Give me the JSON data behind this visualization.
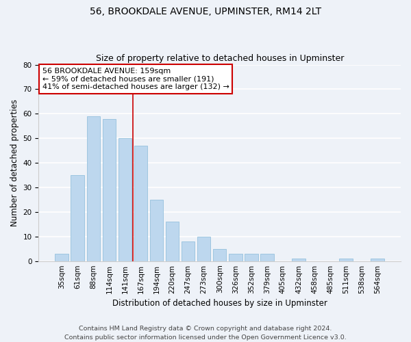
{
  "title": "56, BROOKDALE AVENUE, UPMINSTER, RM14 2LT",
  "subtitle": "Size of property relative to detached houses in Upminster",
  "xlabel": "Distribution of detached houses by size in Upminster",
  "ylabel": "Number of detached properties",
  "categories": [
    "35sqm",
    "61sqm",
    "88sqm",
    "114sqm",
    "141sqm",
    "167sqm",
    "194sqm",
    "220sqm",
    "247sqm",
    "273sqm",
    "300sqm",
    "326sqm",
    "352sqm",
    "379sqm",
    "405sqm",
    "432sqm",
    "458sqm",
    "485sqm",
    "511sqm",
    "538sqm",
    "564sqm"
  ],
  "values": [
    3,
    35,
    59,
    58,
    50,
    47,
    25,
    16,
    8,
    10,
    5,
    3,
    3,
    3,
    0,
    1,
    0,
    0,
    1,
    0,
    1
  ],
  "bar_color": "#bdd7ee",
  "bar_edge_color": "#9ec6e0",
  "vline_x_index": 5,
  "vline_color": "#cc0000",
  "ylim": [
    0,
    80
  ],
  "yticks": [
    0,
    10,
    20,
    30,
    40,
    50,
    60,
    70,
    80
  ],
  "annotation_line1": "56 BROOKDALE AVENUE: 159sqm",
  "annotation_line2": "← 59% of detached houses are smaller (191)",
  "annotation_line3": "41% of semi-detached houses are larger (132) →",
  "footer_line1": "Contains HM Land Registry data © Crown copyright and database right 2024.",
  "footer_line2": "Contains public sector information licensed under the Open Government Licence v3.0.",
  "background_color": "#eef2f8",
  "grid_color": "white",
  "title_fontsize": 10,
  "subtitle_fontsize": 9,
  "axis_label_fontsize": 8.5,
  "tick_fontsize": 7.5,
  "annotation_fontsize": 8,
  "footer_fontsize": 6.8,
  "box_edge_color": "#cc0000"
}
